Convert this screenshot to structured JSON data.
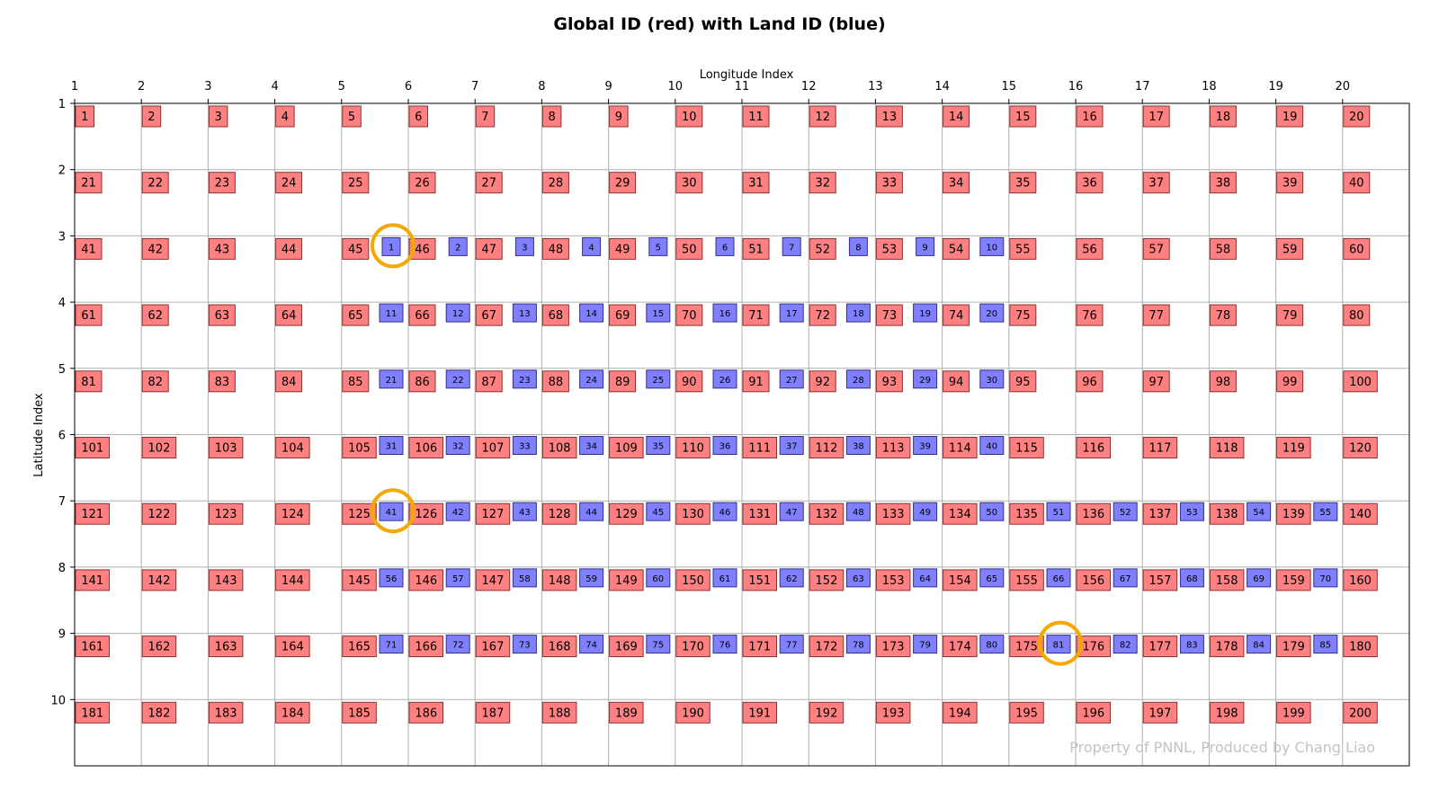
{
  "chart_data": {
    "type": "table",
    "title": "Global ID (red) with Land ID (blue)",
    "xlabel": "Longitude Index",
    "ylabel": "Latitude Index",
    "x_ticks": [
      "1",
      "2",
      "3",
      "4",
      "5",
      "6",
      "7",
      "8",
      "9",
      "10",
      "11",
      "12",
      "13",
      "14",
      "15",
      "16",
      "17",
      "18",
      "19",
      "20"
    ],
    "y_ticks": [
      "1",
      "2",
      "3",
      "4",
      "5",
      "6",
      "7",
      "8",
      "9",
      "10"
    ],
    "grid": true,
    "global_id_series": {
      "name": "Global ID (red)",
      "color": "#ff8080",
      "ncols": 20,
      "nrows": 10,
      "values": [
        1,
        2,
        3,
        4,
        5,
        6,
        7,
        8,
        9,
        10,
        11,
        12,
        13,
        14,
        15,
        16,
        17,
        18,
        19,
        20,
        21,
        22,
        23,
        24,
        25,
        26,
        27,
        28,
        29,
        30,
        31,
        32,
        33,
        34,
        35,
        36,
        37,
        38,
        39,
        40,
        41,
        42,
        43,
        44,
        45,
        46,
        47,
        48,
        49,
        50,
        51,
        52,
        53,
        54,
        55,
        56,
        57,
        58,
        59,
        60,
        61,
        62,
        63,
        64,
        65,
        66,
        67,
        68,
        69,
        70,
        71,
        72,
        73,
        74,
        75,
        76,
        77,
        78,
        79,
        80,
        81,
        82,
        83,
        84,
        85,
        86,
        87,
        88,
        89,
        90,
        91,
        92,
        93,
        94,
        95,
        96,
        97,
        98,
        99,
        100,
        101,
        102,
        103,
        104,
        105,
        106,
        107,
        108,
        109,
        110,
        111,
        112,
        113,
        114,
        115,
        116,
        117,
        118,
        119,
        120,
        121,
        122,
        123,
        124,
        125,
        126,
        127,
        128,
        129,
        130,
        131,
        132,
        133,
        134,
        135,
        136,
        137,
        138,
        139,
        140,
        141,
        142,
        143,
        144,
        145,
        146,
        147,
        148,
        149,
        150,
        151,
        152,
        153,
        154,
        155,
        156,
        157,
        158,
        159,
        160,
        161,
        162,
        163,
        164,
        165,
        166,
        167,
        168,
        169,
        170,
        171,
        172,
        173,
        174,
        175,
        176,
        177,
        178,
        179,
        180,
        181,
        182,
        183,
        184,
        185,
        186,
        187,
        188,
        189,
        190,
        191,
        192,
        193,
        194,
        195,
        196,
        197,
        198,
        199,
        200
      ]
    },
    "land_id_series": {
      "name": "Land ID (blue)",
      "color": "#8080ff",
      "rows": [
        {
          "lat": 3,
          "lon_start": 6,
          "ids": [
            1,
            2,
            3,
            4,
            5,
            6,
            7,
            8,
            9,
            10
          ]
        },
        {
          "lat": 4,
          "lon_start": 6,
          "ids": [
            11,
            12,
            13,
            14,
            15,
            16,
            17,
            18,
            19,
            20
          ]
        },
        {
          "lat": 5,
          "lon_start": 6,
          "ids": [
            21,
            22,
            23,
            24,
            25,
            26,
            27,
            28,
            29,
            30
          ]
        },
        {
          "lat": 6,
          "lon_start": 6,
          "ids": [
            31,
            32,
            33,
            34,
            35,
            36,
            37,
            38,
            39,
            40
          ]
        },
        {
          "lat": 7,
          "lon_start": 6,
          "ids": [
            41,
            42,
            43,
            44,
            45,
            46,
            47,
            48,
            49,
            50,
            51,
            52,
            53,
            54,
            55
          ]
        },
        {
          "lat": 8,
          "lon_start": 6,
          "ids": [
            56,
            57,
            58,
            59,
            60,
            61,
            62,
            63,
            64,
            65,
            66,
            67,
            68,
            69,
            70
          ]
        },
        {
          "lat": 9,
          "lon_start": 6,
          "ids": [
            71,
            72,
            73,
            74,
            75,
            76,
            77,
            78,
            79,
            80,
            81,
            82,
            83,
            84,
            85
          ]
        }
      ]
    },
    "highlighted_land_ids": [
      1,
      41,
      81
    ],
    "highlight_color": "#f5a800",
    "watermark": "Property of PNNL, Produced by Chang Liao"
  }
}
